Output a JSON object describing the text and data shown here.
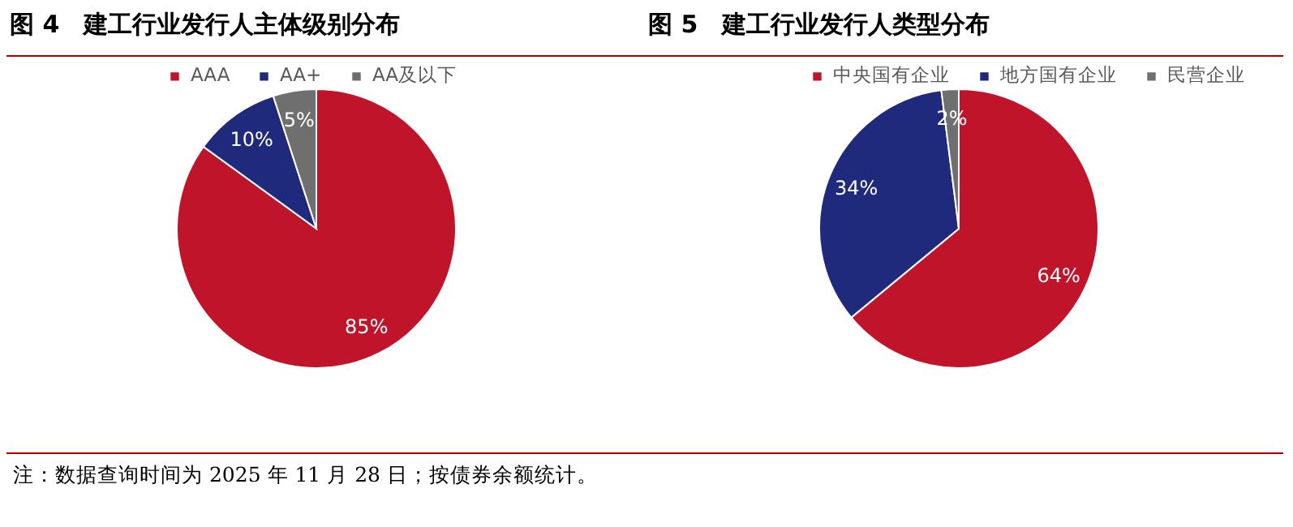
{
  "chart_data": [
    {
      "type": "pie",
      "title": "图 4　建工行业发行人主体级别分布",
      "categories": [
        "AAA",
        "AA+",
        "AA及以下"
      ],
      "values": [
        85,
        10,
        5
      ],
      "colors": [
        "#c0142b",
        "#1f2a7c",
        "#6f6f6f"
      ],
      "value_labels": [
        "85%",
        "10%",
        "5%"
      ],
      "legend": "top",
      "annotations": [
        "注：数据查询时间为 2025 年 11 月 28 日；按债券余额统计。"
      ]
    },
    {
      "type": "pie",
      "title": "图 5　建工行业发行人类型分布",
      "categories": [
        "中央国有企业",
        "地方国有企业",
        "民营企业"
      ],
      "values": [
        64,
        34,
        2
      ],
      "colors": [
        "#c0142b",
        "#1f2a7c",
        "#6f6f6f"
      ],
      "value_labels": [
        "64%",
        "34%",
        "2%"
      ],
      "legend": "top"
    }
  ]
}
